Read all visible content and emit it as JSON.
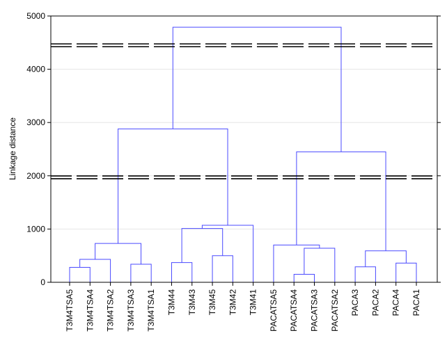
{
  "chart_data": {
    "type": "dendrogram",
    "title": "",
    "xlabel": "",
    "ylabel": "Linkage distance",
    "ylim": [
      0,
      5000
    ],
    "yticks": [
      0,
      1000,
      2000,
      3000,
      4000,
      5000
    ],
    "leaves": [
      "T3M4TSA5",
      "T3M4TSA4",
      "T3M4TSA2",
      "T3M4TSA3",
      "T3M4TSA1",
      "T3M44",
      "T3M43",
      "T3M45",
      "T3M42",
      "T3M41",
      "PACATSA5",
      "PACATSA4",
      "PACATSA3",
      "PACATSA2",
      "PACA3",
      "PACA2",
      "PACA4",
      "PACA1"
    ],
    "merges": [
      {
        "a": "T3M4TSA5",
        "b": "T3M4TSA4",
        "height": 280,
        "id": "c1"
      },
      {
        "a": "c1",
        "b": "T3M4TSA2",
        "height": 430,
        "id": "c2"
      },
      {
        "a": "T3M4TSA3",
        "b": "T3M4TSA1",
        "height": 340,
        "id": "c3"
      },
      {
        "a": "c2",
        "b": "c3",
        "height": 730,
        "id": "c4"
      },
      {
        "a": "T3M45",
        "b": "T3M42",
        "height": 500,
        "id": "c5"
      },
      {
        "a": "T3M44",
        "b": "T3M43",
        "height": 370,
        "id": "c6"
      },
      {
        "a": "c6",
        "b": "c5",
        "height": 1010,
        "id": "c7"
      },
      {
        "a": "c7",
        "b": "T3M41",
        "height": 1070,
        "id": "c8"
      },
      {
        "a": "c4",
        "b": "c8",
        "height": 2880,
        "id": "c9"
      },
      {
        "a": "PACATSA4",
        "b": "PACATSA3",
        "height": 150,
        "id": "c10"
      },
      {
        "a": "c10",
        "b": "PACATSA2",
        "height": 640,
        "id": "c11"
      },
      {
        "a": "PACATSA5",
        "b": "c11",
        "height": 700,
        "id": "c12"
      },
      {
        "a": "PACA3",
        "b": "PACA2",
        "height": 290,
        "id": "c13"
      },
      {
        "a": "PACA4",
        "b": "PACA1",
        "height": 360,
        "id": "c14"
      },
      {
        "a": "c13",
        "b": "c14",
        "height": 590,
        "id": "c15"
      },
      {
        "a": "c12",
        "b": "c15",
        "height": 2450,
        "id": "c16"
      },
      {
        "a": "c9",
        "b": "c16",
        "height": 4790,
        "id": "c17"
      }
    ],
    "cut_lines": [
      4450,
      1970
    ],
    "colors": {
      "tree": "#4a4aff",
      "cut": "#000000",
      "grid": "#e6e6e6"
    },
    "grid": true,
    "legend": "none"
  }
}
